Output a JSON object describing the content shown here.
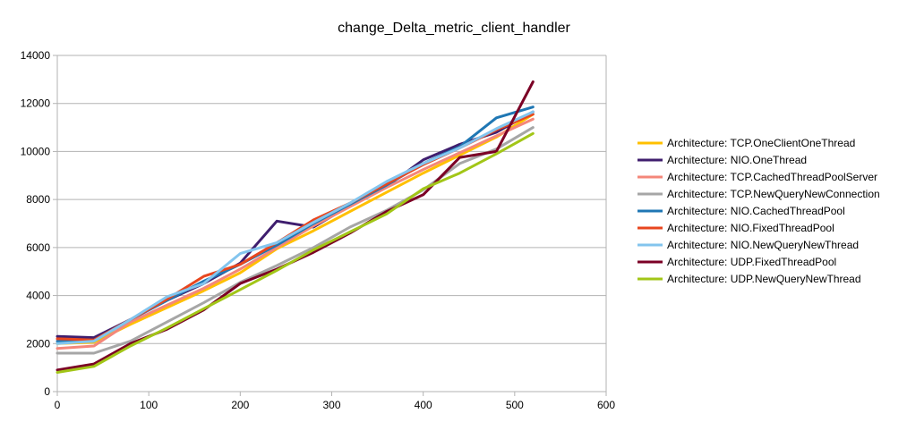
{
  "chart_data": {
    "type": "line",
    "title": "change_Delta_metric_client_handler",
    "xlabel": "",
    "ylabel": "",
    "xlim": [
      0,
      600
    ],
    "ylim": [
      0,
      14000
    ],
    "x_ticks": [
      0,
      100,
      200,
      300,
      400,
      500,
      600
    ],
    "y_ticks": [
      0,
      2000,
      4000,
      6000,
      8000,
      10000,
      12000,
      14000
    ],
    "grid": "horizontal",
    "legend_position": "right",
    "x": [
      0,
      40,
      80,
      120,
      160,
      200,
      240,
      280,
      320,
      360,
      400,
      440,
      480,
      520
    ],
    "series": [
      {
        "name": "Architecture: TCP.OneClientOneThread",
        "color": "#ffc000",
        "values": [
          2000,
          2050,
          2800,
          3500,
          4200,
          4950,
          5950,
          6700,
          7500,
          8300,
          9100,
          9850,
          10600,
          11550
        ]
      },
      {
        "name": "Architecture: NIO.OneThread",
        "color": "#3f1e6e",
        "values": [
          2300,
          2250,
          3000,
          3800,
          4500,
          5350,
          7100,
          6850,
          7750,
          8550,
          9650,
          10300,
          10800,
          11650
        ]
      },
      {
        "name": "Architecture: TCP.CachedThreadPoolServer",
        "color": "#f4877a",
        "values": [
          1800,
          1900,
          2900,
          3600,
          4300,
          5100,
          6000,
          6900,
          7700,
          8500,
          9250,
          9950,
          10650,
          11350
        ]
      },
      {
        "name": "Architecture: TCP.NewQueryNewConnection",
        "color": "#a6a6a6",
        "values": [
          1600,
          1600,
          2100,
          2900,
          3700,
          4550,
          5250,
          6000,
          6850,
          7550,
          8400,
          9500,
          10100,
          11000
        ]
      },
      {
        "name": "Architecture: NIO.CachedThreadPool",
        "color": "#1f77b4",
        "values": [
          2100,
          2100,
          3000,
          3800,
          4600,
          5300,
          6100,
          7000,
          7800,
          8600,
          9500,
          10200,
          11400,
          11850
        ]
      },
      {
        "name": "Architecture: NIO.FixedThreadPool",
        "color": "#e8461e",
        "values": [
          2200,
          2150,
          3000,
          3850,
          4800,
          5300,
          6200,
          7150,
          7850,
          8650,
          9450,
          10150,
          10900,
          11550
        ]
      },
      {
        "name": "Architecture: NIO.NewQueryNewThread",
        "color": "#83c5ee",
        "values": [
          2000,
          2100,
          3000,
          3950,
          4500,
          5750,
          6200,
          7050,
          7850,
          8750,
          9500,
          10150,
          10950,
          11650
        ]
      },
      {
        "name": "Architecture: UDP.FixedThreadPool",
        "color": "#7b0025",
        "values": [
          900,
          1150,
          2000,
          2600,
          3400,
          4500,
          5100,
          5800,
          6600,
          7500,
          8200,
          9750,
          10000,
          12900
        ]
      },
      {
        "name": "Architecture: UDP.NewQueryNewThread",
        "color": "#a2c617",
        "values": [
          800,
          1050,
          1900,
          2650,
          3450,
          4250,
          5050,
          5900,
          6650,
          7400,
          8450,
          9100,
          9900,
          10750
        ]
      }
    ]
  }
}
